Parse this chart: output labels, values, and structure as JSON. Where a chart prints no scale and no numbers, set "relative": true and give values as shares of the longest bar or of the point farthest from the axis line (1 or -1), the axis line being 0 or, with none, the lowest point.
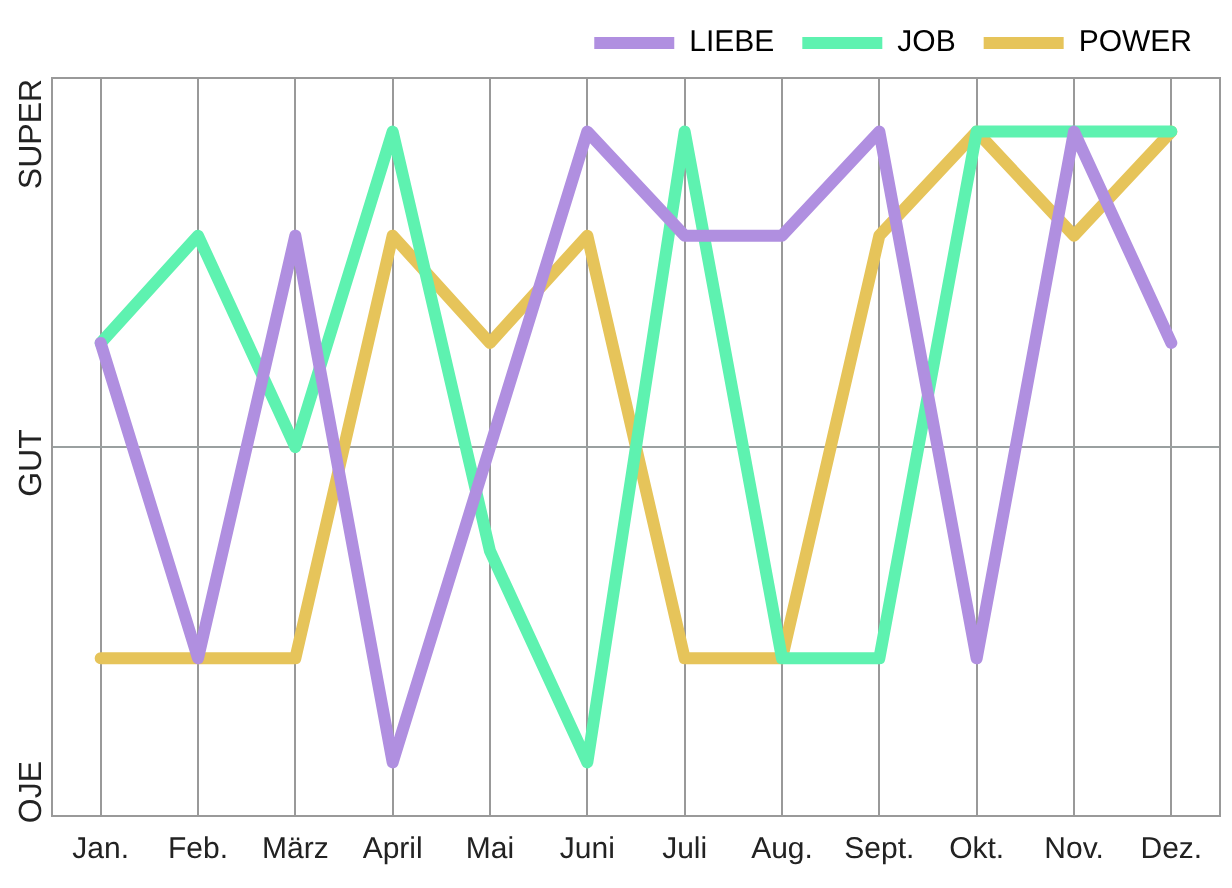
{
  "chart_data": {
    "type": "line",
    "categories": [
      "Jan.",
      "Feb.",
      "März",
      "April",
      "Mai",
      "Juni",
      "Juli",
      "Aug.",
      "Sept.",
      "Okt.",
      "Nov.",
      "Dez."
    ],
    "series": [
      {
        "name": "LIEBE",
        "color": "#b08fe0",
        "values": [
          0.33,
          -0.67,
          0.67,
          -1,
          0,
          1,
          0.67,
          0.67,
          1,
          -0.67,
          1,
          0.33
        ]
      },
      {
        "name": "JOB",
        "color": "#5ef2b0",
        "values": [
          0.33,
          0.67,
          0,
          1,
          -0.33,
          -1,
          1,
          -0.67,
          -0.67,
          1,
          1,
          1
        ]
      },
      {
        "name": "POWER",
        "color": "#e6c45a",
        "values": [
          -0.67,
          -0.67,
          -0.67,
          0.67,
          0.33,
          0.67,
          -0.67,
          -0.67,
          0.67,
          1,
          0.67,
          1
        ]
      }
    ],
    "relative": true,
    "annotations": [
      "SUPER",
      "GUT",
      "OJE"
    ],
    "ref_lines": [
      {
        "axis": "y",
        "value": 0,
        "color": "#9aa0a0"
      }
    ],
    "grid": "x",
    "legend": "top right",
    "marker": "none",
    "line_style": "solid"
  }
}
